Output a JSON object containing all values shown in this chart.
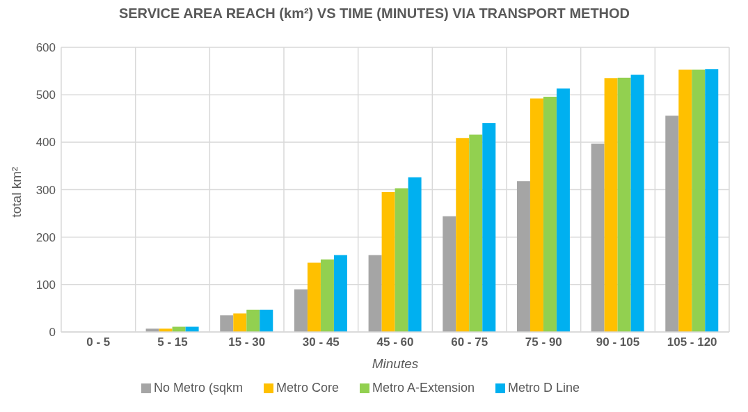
{
  "chart_data": {
    "type": "bar",
    "title": "SERVICE AREA REACH (km²) VS TIME (MINUTES) VIA TRANSPORT METHOD",
    "xlabel": "Minutes",
    "ylabel": "total km²",
    "categories": [
      "0 - 5",
      "5 - 15",
      "15 - 30",
      "30 - 45",
      "45 - 60",
      "60 - 75",
      "75 - 90",
      "90 - 105",
      "105 - 120"
    ],
    "series": [
      {
        "name": "No Metro (sqkm",
        "color": "#a5a5a5",
        "values": [
          0,
          7,
          35,
          90,
          162,
          244,
          318,
          397,
          456
        ]
      },
      {
        "name": "Metro Core",
        "color": "#ffc000",
        "values": [
          0,
          7,
          39,
          146,
          295,
          409,
          492,
          535,
          553
        ]
      },
      {
        "name": "Metro A-Extension",
        "color": "#92d050",
        "values": [
          null,
          11,
          47,
          153,
          303,
          416,
          496,
          536,
          553
        ]
      },
      {
        "name": "Metro D Line",
        "color": "#00b0f0",
        "values": [
          null,
          11,
          47,
          162,
          326,
          440,
          513,
          542,
          554
        ]
      }
    ],
    "ylim": [
      0,
      600
    ],
    "yticks": [
      0,
      100,
      200,
      300,
      400,
      500,
      600
    ],
    "grid": true,
    "legend": "bottom"
  }
}
